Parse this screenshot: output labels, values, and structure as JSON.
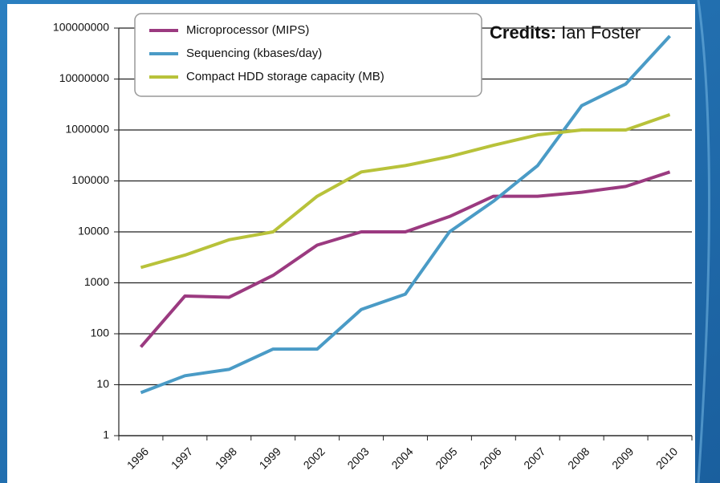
{
  "chart_data": {
    "type": "line",
    "log_scale": true,
    "grid": true,
    "legend": "top-left",
    "annotation": {
      "label": "Credits:",
      "text": "Ian Foster"
    },
    "categories": [
      "1996",
      "1997",
      "1998",
      "1999",
      "2002",
      "2003",
      "2004",
      "2005",
      "2006",
      "2007",
      "2008",
      "2009",
      "2010"
    ],
    "series": [
      {
        "name": "Microprocessor (MIPS)",
        "color": "#9b3a80",
        "values": [
          55,
          550,
          520,
          1400,
          5500,
          10000,
          10000,
          20000,
          50000,
          50000,
          60000,
          78000,
          150000
        ]
      },
      {
        "name": "Sequencing (kbases/day)",
        "color": "#4a9bc6",
        "values": [
          7,
          15,
          20,
          50,
          50,
          300,
          600,
          10000,
          40000,
          200000,
          3000000,
          8000000,
          70000000
        ]
      },
      {
        "name": "Compact HDD storage capacity (MB)",
        "color": "#b8c23a",
        "values": [
          2000,
          3500,
          7000,
          10000,
          50000,
          150000,
          200000,
          300000,
          500000,
          800000,
          1000000,
          1000000,
          2000000
        ]
      }
    ],
    "ylim": [
      1,
      100000000
    ],
    "yticks": [
      1,
      10,
      100,
      1000,
      10000,
      100000,
      1000000,
      10000000,
      100000000
    ]
  }
}
